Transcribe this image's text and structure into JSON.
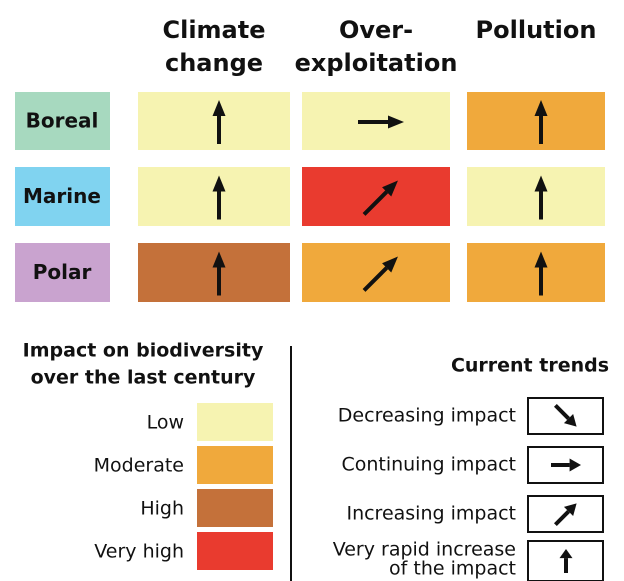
{
  "header": {
    "columns": [
      {
        "lines": [
          "Climate",
          "change"
        ]
      },
      {
        "lines": [
          "Over-",
          "exploitation"
        ]
      },
      {
        "lines": [
          "Pollution"
        ]
      }
    ]
  },
  "rows": [
    {
      "label": "Boreal",
      "color": "#a7d9bf",
      "cells": [
        {
          "color": "#f6f3b1",
          "arrow": "up"
        },
        {
          "color": "#f6f3b1",
          "arrow": "right"
        },
        {
          "color": "#f0a93c",
          "arrow": "up"
        }
      ]
    },
    {
      "label": "Marine",
      "color": "#80d3f0",
      "cells": [
        {
          "color": "#f6f3b1",
          "arrow": "up"
        },
        {
          "color": "#e93b2f",
          "arrow": "diagonal"
        },
        {
          "color": "#f6f3b1",
          "arrow": "up"
        }
      ]
    },
    {
      "label": "Polar",
      "color": "#c9a3cf",
      "cells": [
        {
          "color": "#c4713a",
          "arrow": "up"
        },
        {
          "color": "#f0a93c",
          "arrow": "diagonal"
        },
        {
          "color": "#f0a93c",
          "arrow": "up"
        }
      ]
    }
  ],
  "impact_legend": {
    "title_lines": [
      "Impact on biodiversity",
      "over the last century"
    ],
    "levels": [
      {
        "label": "Low",
        "color": "#f6f3b1"
      },
      {
        "label": "Moderate",
        "color": "#f0a93c"
      },
      {
        "label": "High",
        "color": "#c4713a"
      },
      {
        "label": "Very high",
        "color": "#e93b2f"
      }
    ]
  },
  "trend_legend": {
    "title": "Current trends",
    "items": [
      {
        "lines": [
          "Decreasing impact"
        ],
        "arrow": "down-right"
      },
      {
        "lines": [
          "Continuing impact"
        ],
        "arrow": "right"
      },
      {
        "lines": [
          "Increasing impact"
        ],
        "arrow": "diagonal"
      },
      {
        "lines": [
          "Very rapid increase",
          "of the impact"
        ],
        "arrow": "up"
      }
    ]
  }
}
